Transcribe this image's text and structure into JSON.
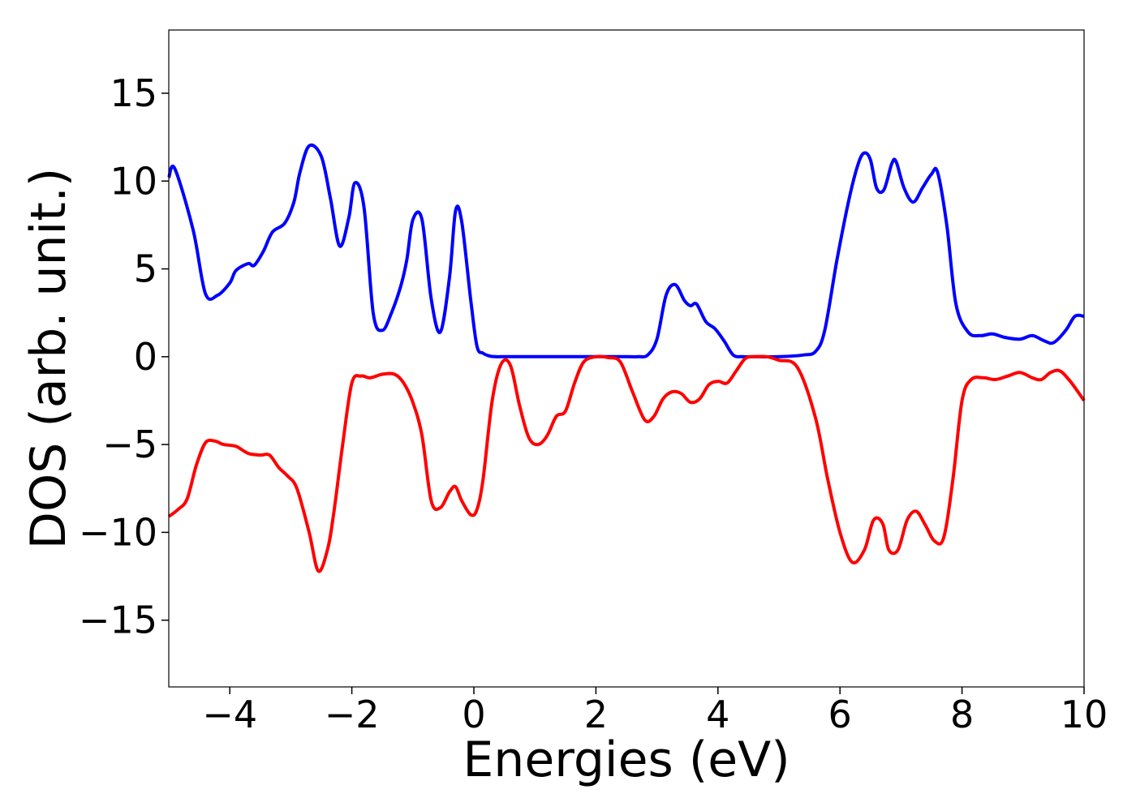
{
  "chart_data": {
    "type": "line",
    "title": "",
    "xlabel": "Energies (eV)",
    "ylabel": "DOS (arb. unit.)",
    "xlim": [
      -5,
      10
    ],
    "ylim": [
      -18.8,
      18.6
    ],
    "xticks": [
      -4,
      -2,
      0,
      2,
      4,
      6,
      8,
      10
    ],
    "xtick_labels": [
      "−4",
      "−2",
      "0",
      "2",
      "4",
      "6",
      "8",
      "10"
    ],
    "yticks": [
      -15,
      -10,
      -5,
      0,
      5,
      10,
      15
    ],
    "ytick_labels": [
      "−15",
      "−10",
      "−5",
      "0",
      "5",
      "10",
      "15"
    ],
    "grid": false,
    "legend": "none",
    "series": [
      {
        "color": "#0000ff",
        "x": [
          -5.0,
          -4.9,
          -4.6,
          -4.4,
          -4.2,
          -4.0,
          -3.9,
          -3.7,
          -3.6,
          -3.45,
          -3.3,
          -3.1,
          -2.95,
          -2.85,
          -2.7,
          -2.5,
          -2.35,
          -2.2,
          -2.05,
          -1.95,
          -1.8,
          -1.65,
          -1.5,
          -1.35,
          -1.2,
          -1.1,
          -1.0,
          -0.85,
          -0.7,
          -0.55,
          -0.4,
          -0.3,
          -0.2,
          -0.05,
          0.05,
          0.15,
          0.25,
          0.35,
          0.45,
          0.55,
          0.65,
          0.75,
          0.85,
          1.0,
          1.15,
          1.4,
          2.0,
          2.5,
          2.7,
          2.85,
          3.0,
          3.15,
          3.3,
          3.45,
          3.55,
          3.65,
          3.8,
          3.95,
          4.1,
          4.25,
          4.4,
          4.6,
          5.0,
          5.4,
          5.6,
          5.75,
          5.95,
          6.15,
          6.3,
          6.4,
          6.5,
          6.6,
          6.72,
          6.85,
          6.92,
          7.05,
          7.2,
          7.35,
          7.5,
          7.6,
          7.75,
          7.9,
          8.1,
          8.3,
          8.5,
          8.7,
          8.95,
          9.15,
          9.35,
          9.5,
          9.7,
          9.85,
          10.0
        ],
        "y": [
          10.2,
          10.7,
          7.2,
          3.6,
          3.5,
          4.2,
          4.9,
          5.3,
          5.2,
          6.0,
          7.1,
          7.6,
          8.8,
          10.5,
          12.0,
          11.4,
          9.0,
          6.3,
          7.9,
          9.9,
          8.5,
          2.5,
          1.5,
          2.5,
          4.0,
          5.5,
          7.8,
          7.8,
          3.3,
          1.4,
          4.5,
          8.3,
          7.7,
          3.2,
          0.6,
          0.2,
          0.05,
          0.0,
          0.0,
          0.0,
          0.0,
          0.0,
          0.0,
          0.0,
          0.0,
          0.0,
          0.0,
          0.0,
          0.0,
          0.1,
          1.0,
          3.5,
          4.1,
          3.2,
          2.9,
          3.0,
          2.0,
          1.6,
          0.9,
          0.1,
          0.0,
          0.0,
          0.0,
          0.1,
          0.3,
          1.5,
          5.5,
          9.0,
          11.0,
          11.6,
          11.2,
          9.6,
          9.5,
          11.0,
          11.1,
          9.6,
          8.8,
          9.6,
          10.4,
          10.5,
          7.5,
          3.0,
          1.4,
          1.2,
          1.3,
          1.1,
          1.0,
          1.2,
          0.9,
          0.8,
          1.5,
          2.3,
          2.3
        ]
      },
      {
        "color": "#ff0000",
        "x": [
          -5.0,
          -4.85,
          -4.7,
          -4.55,
          -4.4,
          -4.25,
          -4.1,
          -3.9,
          -3.7,
          -3.5,
          -3.35,
          -3.2,
          -3.05,
          -2.9,
          -2.7,
          -2.55,
          -2.4,
          -2.3,
          -2.15,
          -2.0,
          -1.85,
          -1.7,
          -1.5,
          -1.3,
          -1.15,
          -1.0,
          -0.85,
          -0.7,
          -0.55,
          -0.4,
          -0.3,
          -0.2,
          -0.05,
          0.05,
          0.15,
          0.3,
          0.45,
          0.6,
          0.75,
          0.9,
          1.05,
          1.2,
          1.35,
          1.5,
          1.65,
          1.8,
          2.0,
          2.2,
          2.4,
          2.6,
          2.8,
          2.95,
          3.1,
          3.25,
          3.4,
          3.55,
          3.7,
          3.85,
          4.0,
          4.15,
          4.3,
          4.45,
          4.6,
          4.8,
          5.0,
          5.3,
          5.6,
          5.8,
          6.0,
          6.2,
          6.4,
          6.55,
          6.7,
          6.8,
          6.95,
          7.1,
          7.25,
          7.4,
          7.55,
          7.7,
          7.85,
          8.0,
          8.15,
          8.35,
          8.55,
          8.75,
          8.95,
          9.15,
          9.3,
          9.45,
          9.6,
          9.75,
          9.9,
          10.0
        ],
        "y": [
          -9.1,
          -8.7,
          -8.1,
          -6.2,
          -4.9,
          -4.8,
          -5.0,
          -5.1,
          -5.5,
          -5.6,
          -5.6,
          -6.3,
          -6.8,
          -7.5,
          -10.0,
          -12.2,
          -11.0,
          -9.0,
          -5.0,
          -1.5,
          -1.1,
          -1.2,
          -1.0,
          -1.0,
          -1.5,
          -2.6,
          -4.5,
          -8.2,
          -8.6,
          -7.7,
          -7.4,
          -8.2,
          -9.0,
          -8.7,
          -7.0,
          -2.5,
          -0.4,
          -0.5,
          -2.8,
          -4.6,
          -5.0,
          -4.5,
          -3.4,
          -3.1,
          -1.5,
          -0.3,
          0.0,
          -0.05,
          -0.3,
          -2.0,
          -3.6,
          -3.4,
          -2.4,
          -2.0,
          -2.1,
          -2.6,
          -2.4,
          -1.6,
          -1.4,
          -1.5,
          -0.8,
          -0.1,
          0.0,
          0.0,
          -0.2,
          -0.6,
          -3.5,
          -7.0,
          -10.0,
          -11.7,
          -11.0,
          -9.3,
          -9.5,
          -11.0,
          -11.0,
          -9.3,
          -8.8,
          -9.6,
          -10.5,
          -10.3,
          -7.0,
          -2.5,
          -1.3,
          -1.2,
          -1.3,
          -1.1,
          -0.9,
          -1.2,
          -1.3,
          -0.9,
          -0.8,
          -1.3,
          -2.0,
          -2.5
        ]
      }
    ]
  }
}
